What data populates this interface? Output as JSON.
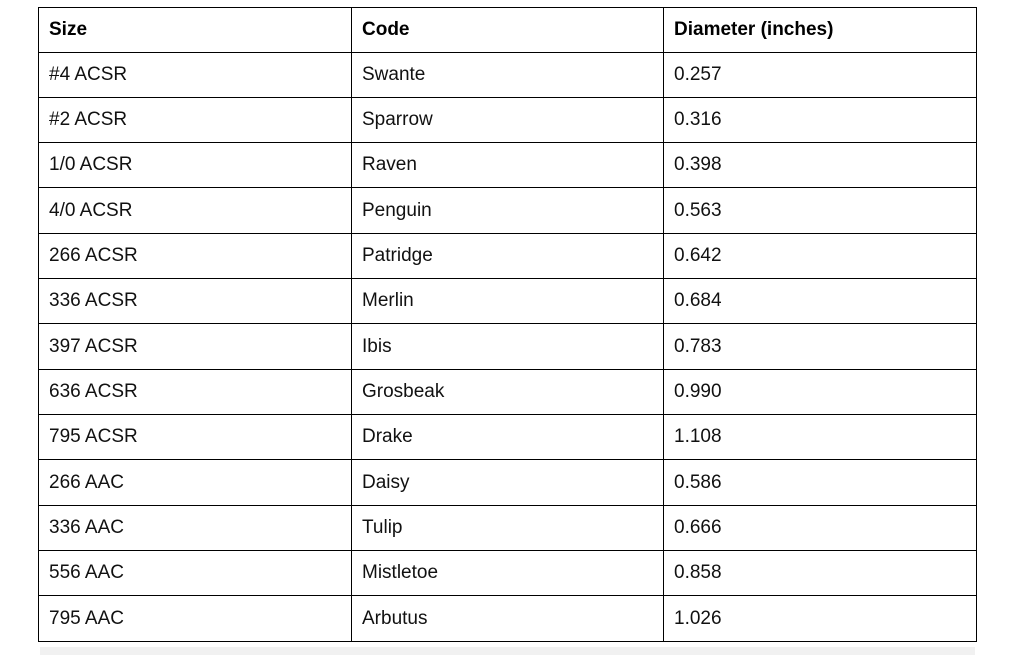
{
  "table": {
    "headers": [
      "Size",
      "Code",
      "Diameter (inches)"
    ],
    "rows": [
      [
        "#4 ACSR",
        "Swante",
        "0.257"
      ],
      [
        "#2 ACSR",
        "Sparrow",
        "0.316"
      ],
      [
        "1/0 ACSR",
        "Raven",
        "0.398"
      ],
      [
        "4/0 ACSR",
        "Penguin",
        "0.563"
      ],
      [
        "266 ACSR",
        "Patridge",
        "0.642"
      ],
      [
        "336 ACSR",
        "Merlin",
        "0.684"
      ],
      [
        "397 ACSR",
        "Ibis",
        "0.783"
      ],
      [
        "636 ACSR",
        "Grosbeak",
        "0.990"
      ],
      [
        "795 ACSR",
        "Drake",
        "1.108"
      ],
      [
        "266 AAC",
        "Daisy",
        "0.586"
      ],
      [
        "336 AAC",
        "Tulip",
        "0.666"
      ],
      [
        "556 AAC",
        "Mistletoe",
        "0.858"
      ],
      [
        "795 AAC",
        "Arbutus",
        "1.026"
      ]
    ]
  }
}
